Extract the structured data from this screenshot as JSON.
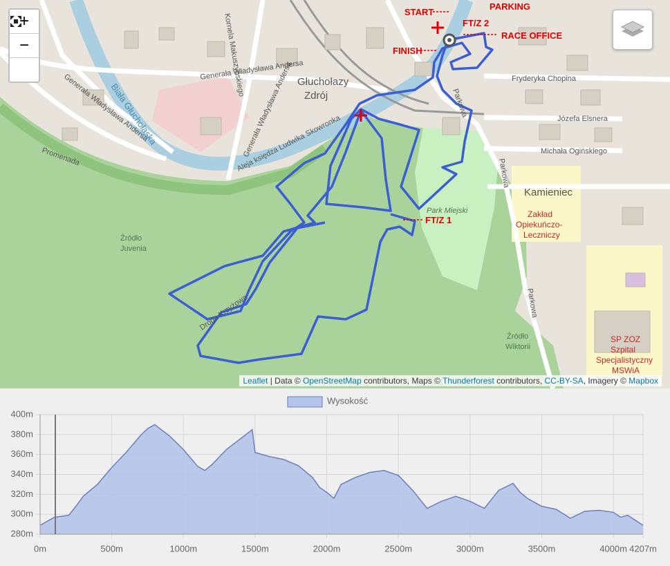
{
  "map": {
    "controls": {
      "zoom_in": "+",
      "zoom_out": "−"
    },
    "labels": [
      "Głuchołazy",
      "Zdrój",
      "Kamieniec",
      "Zakład",
      "Opiekuńczo-",
      "Leczniczy",
      "SP ZOZ",
      "Szpital",
      "Specjalistyczny",
      "MSWiA",
      "Źródło",
      "Juvenia",
      "Źródło",
      "Wiktorii",
      "Park Miejski",
      "Biała Głuchołaska",
      "Generała Władysława Andersa",
      "Generała Władysława Andersa",
      "Kornela Makuszyńskiego",
      "Aleja księdza Ludwika Skowronka",
      "Promenada",
      "Droga Krzyżowa",
      "Parkowa",
      "Parkowa",
      "Parkowa",
      "Fryderyka Chopina",
      "Józefa Elsnera",
      "Michała Ogińskiego",
      "Generała Władysława Andersa"
    ],
    "route_labels": {
      "start": "START",
      "parking": "PARKING",
      "ftz2": "FT/Z 2",
      "race_office": "RACE OFFICE",
      "finish": "FINISH",
      "ftz1": "FT/Z 1"
    },
    "attribution": [
      "Leaflet",
      " | Data © ",
      "OpenStreetMap",
      " contributors, Maps © ",
      "Thunderforest",
      " contributors, ",
      "CC-BY-SA",
      ", Imagery © ",
      "Mapbox"
    ]
  },
  "chart_data": {
    "type": "area",
    "x": [
      0,
      100,
      200,
      250,
      300,
      400,
      500,
      600,
      700,
      750,
      800,
      900,
      1000,
      1100,
      1150,
      1200,
      1300,
      1400,
      1480,
      1500,
      1600,
      1700,
      1800,
      1900,
      1950,
      2000,
      2050,
      2100,
      2200,
      2300,
      2400,
      2500,
      2600,
      2700,
      2800,
      2900,
      3000,
      3100,
      3200,
      3300,
      3350,
      3400,
      3500,
      3600,
      3700,
      3800,
      3900,
      4000,
      4050,
      4100,
      4207
    ],
    "series": [
      {
        "name": "Wysokość",
        "color": "#6b7fbf",
        "fill": "#b4c3e8",
        "values": [
          289,
          297,
          299,
          308,
          318,
          330,
          347,
          362,
          379,
          386,
          390,
          379,
          365,
          348,
          344,
          350,
          365,
          376,
          385,
          362,
          358,
          355,
          349,
          337,
          327,
          322,
          316,
          330,
          337,
          342,
          344,
          339,
          324,
          306,
          313,
          318,
          313,
          306,
          324,
          331,
          322,
          316,
          308,
          305,
          296,
          303,
          304,
          302,
          297,
          299,
          289
        ]
      }
    ],
    "xlim": [
      0,
      4207
    ],
    "ylim": [
      280,
      400
    ],
    "xticks": [
      {
        "value": 0,
        "label": "0m"
      },
      {
        "value": 500,
        "label": "500m"
      },
      {
        "value": 1000,
        "label": "1000m"
      },
      {
        "value": 1500,
        "label": "1500m"
      },
      {
        "value": 2000,
        "label": "2000m"
      },
      {
        "value": 2500,
        "label": "2500m"
      },
      {
        "value": 3000,
        "label": "3000m"
      },
      {
        "value": 3500,
        "label": "3500m"
      },
      {
        "value": 4000,
        "label": "4000m"
      },
      {
        "value": 4207,
        "label": "4207m"
      }
    ],
    "yticks": [
      {
        "value": 280,
        "label": "280m"
      },
      {
        "value": 300,
        "label": "300m"
      },
      {
        "value": 320,
        "label": "320m"
      },
      {
        "value": 340,
        "label": "340m"
      },
      {
        "value": 360,
        "label": "360m"
      },
      {
        "value": 380,
        "label": "380m"
      },
      {
        "value": 400,
        "label": "400m"
      }
    ],
    "grid": true,
    "legend": "top"
  }
}
